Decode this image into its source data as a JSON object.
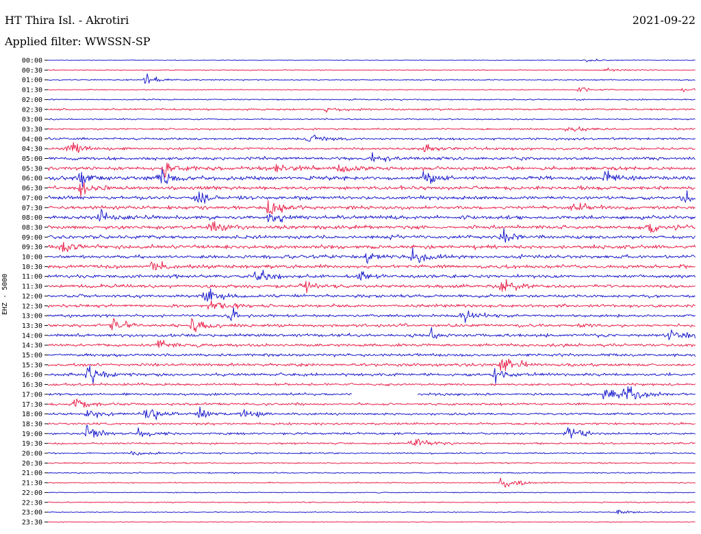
{
  "header": {
    "title": "HT Thira Isl. - Akrotiri",
    "filter": "Applied filter: WWSSN-SP",
    "date": "2021-09-22"
  },
  "axis": {
    "ylabel": "EHZ - 5000"
  },
  "colors": {
    "blue": "#1a1acc",
    "red": "#e8204a"
  },
  "chart_data": {
    "type": "line",
    "title": "HT Thira Isl. - Akrotiri",
    "subtitle": "Applied filter: WWSSN-SP",
    "date": "2021-09-22",
    "ylabel": "EHZ - 5000",
    "grid": false,
    "legend": "none",
    "row_labels": [
      "00:00",
      "00:30",
      "01:00",
      "01:30",
      "02:00",
      "02:30",
      "03:00",
      "03:30",
      "04:00",
      "04:30",
      "05:00",
      "05:30",
      "06:00",
      "06:30",
      "07:00",
      "07:30",
      "08:00",
      "08:30",
      "09:00",
      "09:30",
      "10:00",
      "10:30",
      "11:00",
      "11:30",
      "12:00",
      "12:30",
      "13:00",
      "13:30",
      "14:00",
      "14:30",
      "15:00",
      "15:30",
      "16:00",
      "16:30",
      "17:00",
      "17:30",
      "18:00",
      "18:30",
      "19:00",
      "19:30",
      "20:00",
      "20:30",
      "21:00",
      "21:30",
      "22:00",
      "22:30",
      "23:00",
      "23:30"
    ],
    "row_colors": [
      "blue",
      "red"
    ],
    "noise_levels": [
      0.3,
      0.4,
      0.5,
      0.4,
      0.6,
      0.8,
      0.6,
      0.8,
      1.0,
      1.2,
      1.4,
      1.6,
      1.8,
      1.6,
      1.6,
      1.6,
      1.7,
      1.7,
      1.6,
      1.7,
      1.5,
      1.6,
      1.5,
      1.5,
      1.4,
      1.4,
      1.3,
      1.4,
      1.4,
      1.3,
      1.3,
      1.3,
      1.3,
      1.1,
      1.1,
      1.1,
      1.0,
      1.0,
      1.0,
      0.8,
      0.7,
      0.6,
      0.6,
      0.5,
      0.4,
      0.5,
      0.4,
      0.4
    ],
    "events": [
      {
        "row": 0,
        "x": 0.83,
        "amp": 1.5
      },
      {
        "row": 1,
        "x": 0.86,
        "amp": 2
      },
      {
        "row": 2,
        "x": 0.15,
        "amp": 5
      },
      {
        "row": 3,
        "x": 0.82,
        "amp": 3
      },
      {
        "row": 3,
        "x": 0.98,
        "amp": 2
      },
      {
        "row": 5,
        "x": 0.43,
        "amp": 4
      },
      {
        "row": 7,
        "x": 0.8,
        "amp": 4
      },
      {
        "row": 8,
        "x": 0.4,
        "amp": 5
      },
      {
        "row": 9,
        "x": 0.03,
        "amp": 7
      },
      {
        "row": 9,
        "x": 0.58,
        "amp": 5
      },
      {
        "row": 10,
        "x": 0.5,
        "amp": 6
      },
      {
        "row": 11,
        "x": 0.18,
        "amp": 8
      },
      {
        "row": 11,
        "x": 0.35,
        "amp": 7
      },
      {
        "row": 11,
        "x": 0.45,
        "amp": 6
      },
      {
        "row": 12,
        "x": 0.05,
        "amp": 8
      },
      {
        "row": 12,
        "x": 0.17,
        "amp": 9
      },
      {
        "row": 12,
        "x": 0.58,
        "amp": 6
      },
      {
        "row": 12,
        "x": 0.86,
        "amp": 9
      },
      {
        "row": 13,
        "x": 0.05,
        "amp": 7
      },
      {
        "row": 14,
        "x": 0.23,
        "amp": 6
      },
      {
        "row": 14,
        "x": 0.98,
        "amp": 6
      },
      {
        "row": 15,
        "x": 0.34,
        "amp": 7
      },
      {
        "row": 15,
        "x": 0.81,
        "amp": 6
      },
      {
        "row": 16,
        "x": 0.08,
        "amp": 6
      },
      {
        "row": 16,
        "x": 0.34,
        "amp": 6
      },
      {
        "row": 17,
        "x": 0.25,
        "amp": 7
      },
      {
        "row": 17,
        "x": 0.93,
        "amp": 6
      },
      {
        "row": 18,
        "x": 0.7,
        "amp": 6
      },
      {
        "row": 19,
        "x": 0.02,
        "amp": 6
      },
      {
        "row": 20,
        "x": 0.49,
        "amp": 6
      },
      {
        "row": 20,
        "x": 0.56,
        "amp": 7
      },
      {
        "row": 21,
        "x": 0.16,
        "amp": 8
      },
      {
        "row": 22,
        "x": 0.32,
        "amp": 7
      },
      {
        "row": 22,
        "x": 0.48,
        "amp": 6
      },
      {
        "row": 23,
        "x": 0.39,
        "amp": 6
      },
      {
        "row": 23,
        "x": 0.7,
        "amp": 6
      },
      {
        "row": 24,
        "x": 0.24,
        "amp": 7
      },
      {
        "row": 25,
        "x": 0.25,
        "amp": 8
      },
      {
        "row": 26,
        "x": 0.28,
        "amp": 6
      },
      {
        "row": 26,
        "x": 0.64,
        "amp": 6
      },
      {
        "row": 27,
        "x": 0.1,
        "amp": 8
      },
      {
        "row": 27,
        "x": 0.22,
        "amp": 7
      },
      {
        "row": 28,
        "x": 0.59,
        "amp": 5
      },
      {
        "row": 28,
        "x": 0.96,
        "amp": 7
      },
      {
        "row": 29,
        "x": 0.17,
        "amp": 6
      },
      {
        "row": 31,
        "x": 0.7,
        "amp": 8
      },
      {
        "row": 32,
        "x": 0.06,
        "amp": 8
      },
      {
        "row": 32,
        "x": 0.69,
        "amp": 7
      },
      {
        "row": 34,
        "x": 0.86,
        "amp": 9
      },
      {
        "row": 34,
        "x": 0.89,
        "amp": 9
      },
      {
        "row": 35,
        "x": 0.04,
        "amp": 6
      },
      {
        "row": 36,
        "x": 0.06,
        "amp": 7
      },
      {
        "row": 36,
        "x": 0.15,
        "amp": 9
      },
      {
        "row": 36,
        "x": 0.23,
        "amp": 8
      },
      {
        "row": 36,
        "x": 0.3,
        "amp": 6
      },
      {
        "row": 38,
        "x": 0.06,
        "amp": 9
      },
      {
        "row": 38,
        "x": 0.14,
        "amp": 5
      },
      {
        "row": 38,
        "x": 0.8,
        "amp": 9
      },
      {
        "row": 39,
        "x": 0.56,
        "amp": 10
      },
      {
        "row": 40,
        "x": 0.13,
        "amp": 4
      },
      {
        "row": 43,
        "x": 0.7,
        "amp": 9
      },
      {
        "row": 46,
        "x": 0.88,
        "amp": 3
      }
    ],
    "gap": {
      "row": 34,
      "x_start": 0.47,
      "x_end": 0.57
    }
  }
}
